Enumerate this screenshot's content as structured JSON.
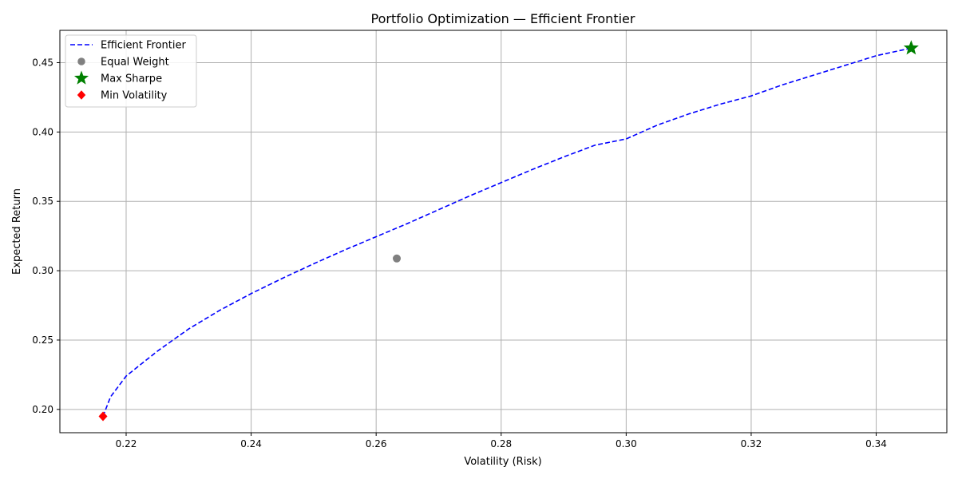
{
  "chart_data": {
    "type": "line",
    "title": "Portfolio Optimization — Efficient Frontier",
    "xlabel": "Volatility (Risk)",
    "ylabel": "Expected Return",
    "xlim": [
      0.2094,
      0.3513
    ],
    "ylim": [
      0.1832,
      0.4733
    ],
    "xticks": [
      "0.22",
      "0.24",
      "0.26",
      "0.28",
      "0.30",
      "0.32",
      "0.34"
    ],
    "yticks": [
      "0.20",
      "0.25",
      "0.30",
      "0.35",
      "0.40",
      "0.45"
    ],
    "grid": true,
    "legend_position": "upper-left",
    "series": [
      {
        "name": "Efficient Frontier",
        "kind": "line",
        "style": "dashed",
        "color": "#0000ff",
        "x": [
          0.2163,
          0.2175,
          0.22,
          0.225,
          0.23,
          0.235,
          0.24,
          0.245,
          0.25,
          0.255,
          0.26,
          0.265,
          0.27,
          0.275,
          0.28,
          0.285,
          0.29,
          0.295,
          0.3,
          0.305,
          0.31,
          0.315,
          0.32,
          0.325,
          0.33,
          0.335,
          0.34,
          0.3456
        ],
        "y": [
          0.195,
          0.209,
          0.224,
          0.242,
          0.258,
          0.2715,
          0.2835,
          0.2945,
          0.305,
          0.315,
          0.3245,
          0.334,
          0.344,
          0.354,
          0.3635,
          0.373,
          0.382,
          0.3905,
          0.395,
          0.405,
          0.413,
          0.42,
          0.426,
          0.434,
          0.441,
          0.448,
          0.455,
          0.4605
        ]
      },
      {
        "name": "Equal Weight",
        "kind": "marker",
        "marker": "circle",
        "color": "#808080",
        "x": [
          0.2633
        ],
        "y": [
          0.3088
        ]
      },
      {
        "name": "Max Sharpe",
        "kind": "marker",
        "marker": "star",
        "color": "#008000",
        "x": [
          0.3456
        ],
        "y": [
          0.4605
        ]
      },
      {
        "name": "Min Volatility",
        "kind": "marker",
        "marker": "diamond",
        "color": "#ff0000",
        "x": [
          0.2163
        ],
        "y": [
          0.195
        ]
      }
    ]
  }
}
